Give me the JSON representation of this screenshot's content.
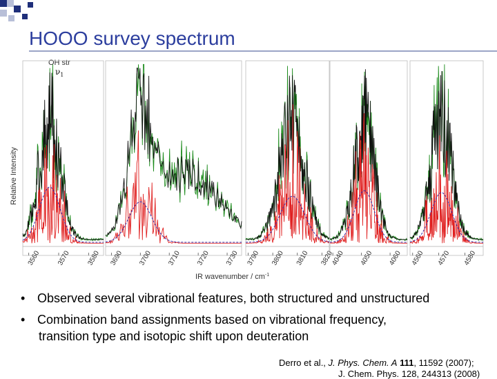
{
  "slide": {
    "title": "HOOO survey spectrum",
    "bullets": [
      "Observed several vibrational features, both structured and unstructured",
      "Combination band assignments based on vibrational frequency, transition type and isotopic shift upon deuteration"
    ],
    "bullet2_line1": "Combination band assignments based on vibrational frequency,",
    "bullet2_line2": "transition type and isotopic shift upon deuteration",
    "citation": {
      "authors": "Derro et al., ",
      "journal": "J. Phys. Chem. A",
      "volume": "111",
      "pages": ", 11592 (2007);",
      "next_line": "J. Chem. Phys. 128, 244313 (2008)"
    },
    "colors": {
      "title": "#2c3e9e",
      "deco_dark": "#1f2f7a",
      "deco_light": "#b8bfd8",
      "series_black": "#111111",
      "series_green": "#1a8a1a",
      "series_red": "#e02020",
      "series_fit": "#3030b0"
    }
  },
  "chart_data": {
    "type": "line",
    "annotation": "OH str",
    "annotation_symbol": "ν",
    "annotation_sub": "1",
    "ylabel": "Relative Intensity",
    "xlabel": "IR wavenumber / cm",
    "xlabel_sup": "-1",
    "panels": [
      {
        "xlim": [
          3558,
          3585
        ],
        "ticks": [
          3560,
          3570,
          3580
        ],
        "center": 3567,
        "width": 3.5,
        "fit_height": 0.3
      },
      {
        "xlim": [
          3688,
          3735
        ],
        "ticks": [
          3690,
          3700,
          3710,
          3720,
          3730
        ],
        "center": 3700,
        "width": 4,
        "broad_center": 3716,
        "broad_width": 11,
        "fit_height": 0.22
      },
      {
        "xlim": [
          3789,
          3823
        ],
        "ticks": [
          3790,
          3800,
          3810,
          3820
        ],
        "center": 3808,
        "width": 5,
        "fit_height": 0.25
      },
      {
        "xlim": [
          4039,
          4066
        ],
        "ticks": [
          4040,
          4050,
          4060
        ],
        "center": 4051,
        "width": 3.5,
        "fit_height": 0.28
      },
      {
        "xlim": [
          4559,
          4587
        ],
        "ticks": [
          4560,
          4570,
          4580
        ],
        "center": 4571,
        "width": 4,
        "fit_height": 0.27
      }
    ]
  }
}
